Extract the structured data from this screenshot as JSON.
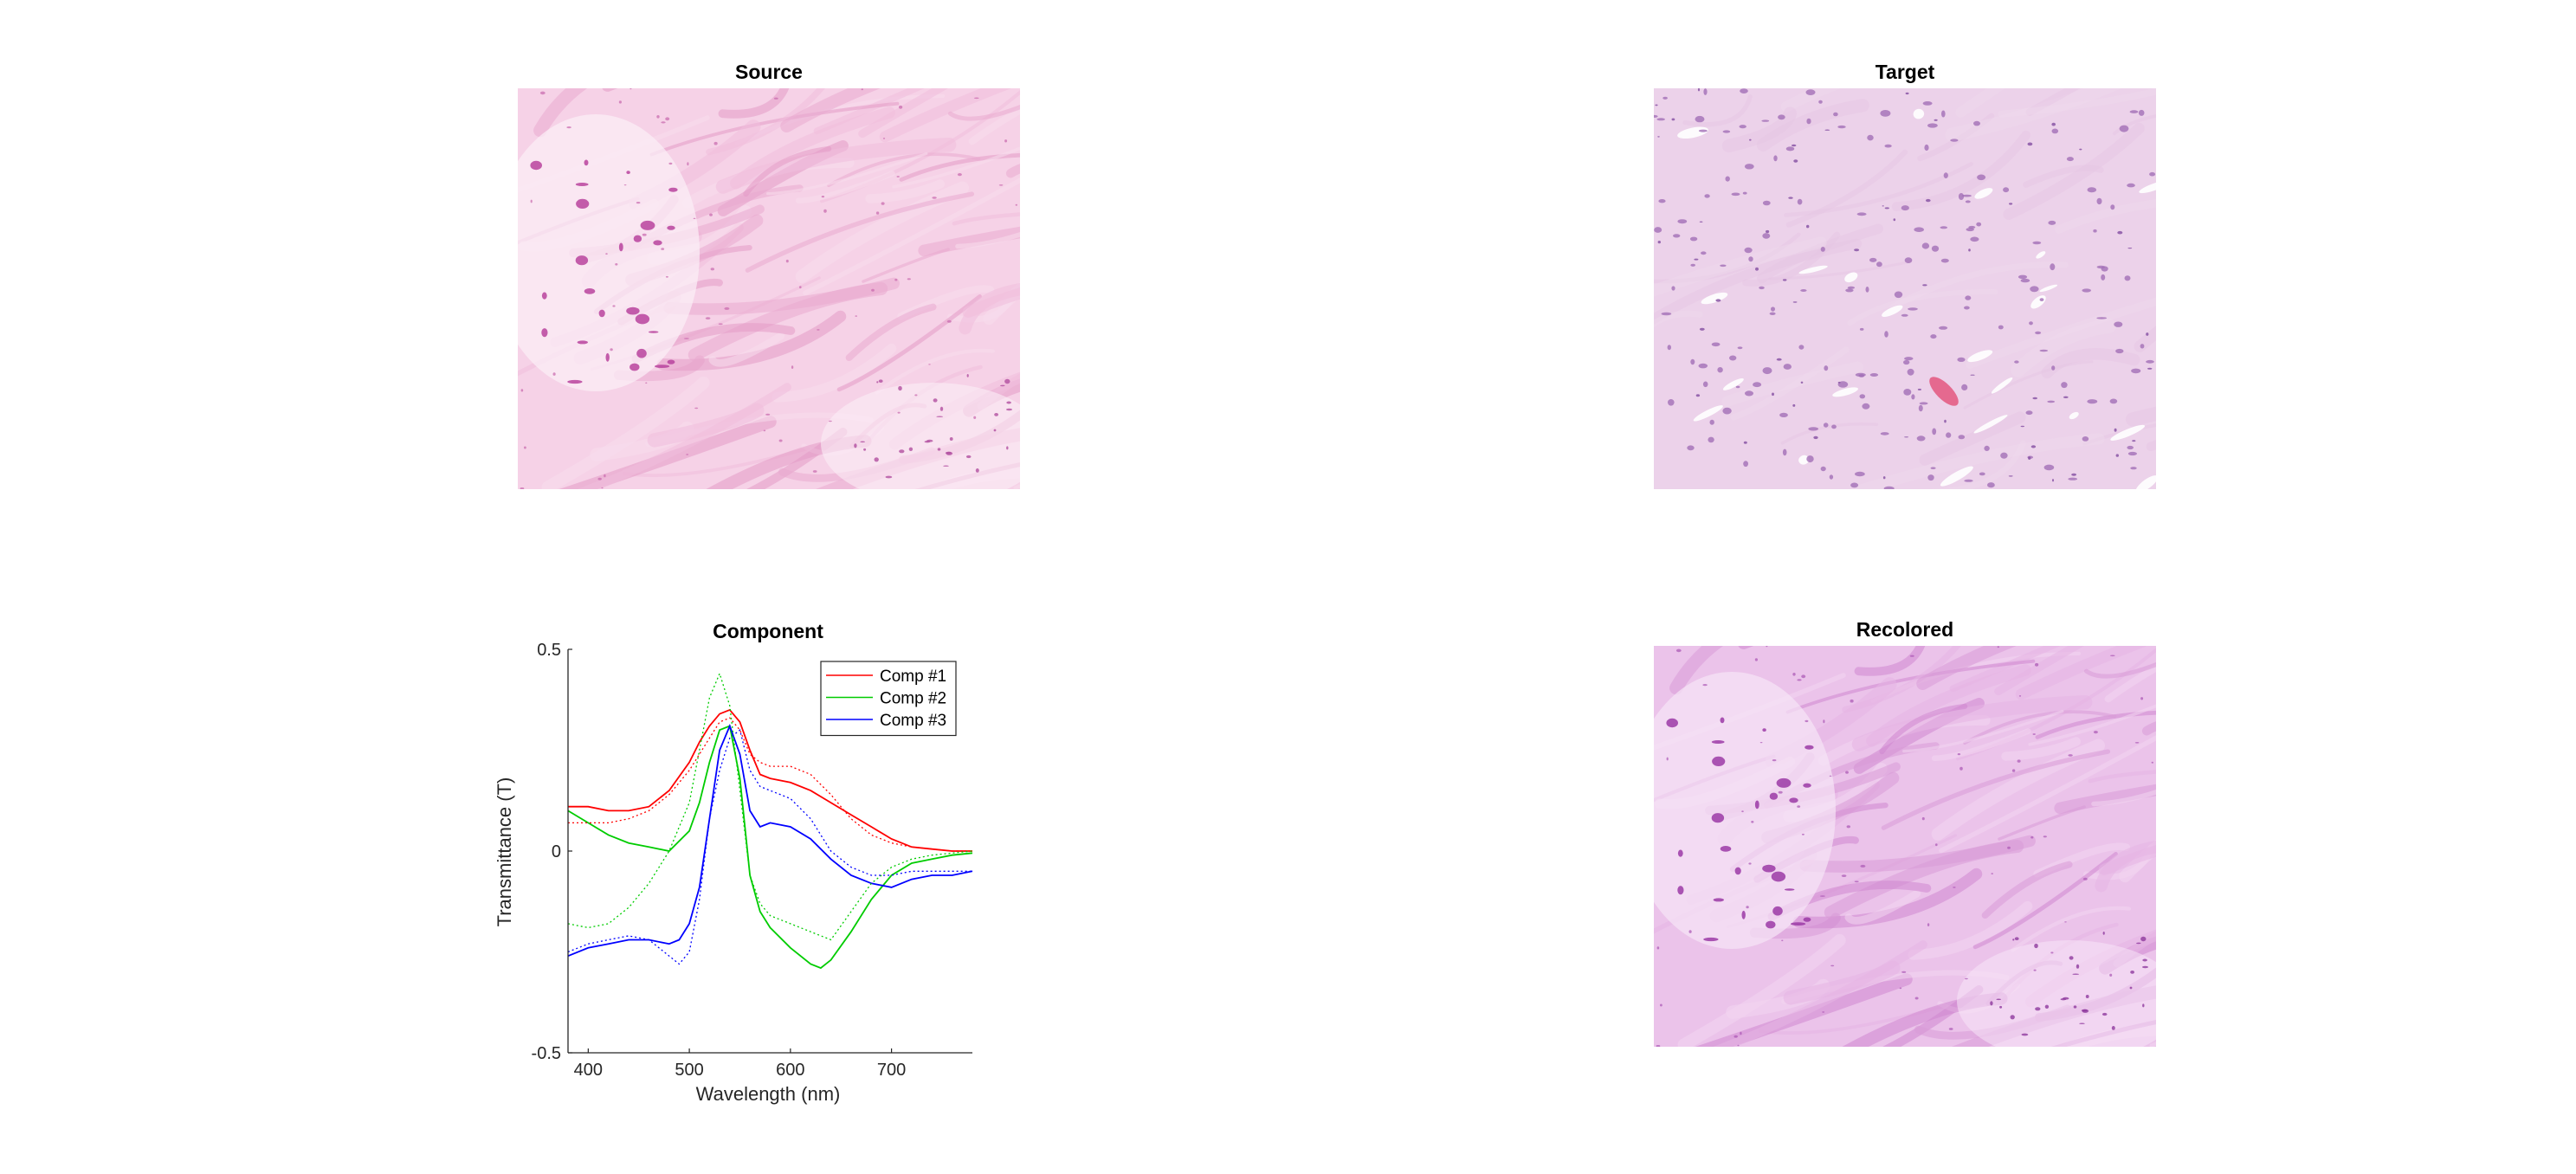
{
  "panels": {
    "source": {
      "title": "Source"
    },
    "target": {
      "title": "Target"
    },
    "component": {
      "title": "Component"
    },
    "recolored": {
      "title": "Recolored"
    }
  },
  "colors": {
    "comp1": "#ff0000",
    "comp2": "#00cc00",
    "comp3": "#0000ff",
    "source_bg": "#f3c3df",
    "source_stain": "#b8439e",
    "target_bg": "#eacce6",
    "target_nuclei": "#a36fb6",
    "recolored_bg": "#e7b6e4",
    "recolored_stain": "#9b3aa6"
  },
  "chart_data": {
    "type": "line",
    "title": "Component",
    "xlabel": "Wavelength (nm)",
    "ylabel": "Transmittance (T)",
    "xlim": [
      380,
      780
    ],
    "ylim": [
      -0.5,
      0.5
    ],
    "xticks": [
      400,
      500,
      600,
      700
    ],
    "yticks": [
      -0.5,
      0,
      0.5
    ],
    "ytick_labels": [
      "-0.5",
      "0",
      "0.5"
    ],
    "legend_position": "top-right",
    "series": [
      {
        "name": "Comp #1",
        "color": "#ff0000",
        "style": "solid",
        "x": [
          380,
          400,
          420,
          440,
          460,
          480,
          500,
          510,
          520,
          530,
          540,
          550,
          560,
          570,
          580,
          600,
          620,
          640,
          660,
          680,
          700,
          720,
          740,
          760,
          780
        ],
        "y": [
          0.11,
          0.11,
          0.1,
          0.1,
          0.11,
          0.15,
          0.22,
          0.27,
          0.31,
          0.34,
          0.35,
          0.32,
          0.25,
          0.19,
          0.18,
          0.17,
          0.15,
          0.12,
          0.09,
          0.06,
          0.03,
          0.01,
          0.005,
          0.0,
          0.0
        ]
      },
      {
        "name": "Comp #2",
        "color": "#00cc00",
        "style": "solid",
        "x": [
          380,
          400,
          420,
          440,
          460,
          480,
          500,
          510,
          520,
          530,
          540,
          550,
          560,
          570,
          580,
          600,
          620,
          630,
          640,
          660,
          680,
          700,
          720,
          740,
          760,
          780
        ],
        "y": [
          0.1,
          0.07,
          0.04,
          0.02,
          0.01,
          0.0,
          0.05,
          0.12,
          0.22,
          0.3,
          0.31,
          0.18,
          -0.06,
          -0.15,
          -0.19,
          -0.24,
          -0.28,
          -0.29,
          -0.27,
          -0.2,
          -0.12,
          -0.06,
          -0.03,
          -0.02,
          -0.01,
          -0.005
        ]
      },
      {
        "name": "Comp #3",
        "color": "#0000ff",
        "style": "solid",
        "x": [
          380,
          400,
          420,
          440,
          460,
          480,
          490,
          500,
          510,
          520,
          530,
          540,
          550,
          560,
          570,
          580,
          600,
          620,
          640,
          660,
          680,
          700,
          720,
          740,
          760,
          780
        ],
        "y": [
          -0.26,
          -0.24,
          -0.23,
          -0.22,
          -0.22,
          -0.23,
          -0.22,
          -0.18,
          -0.09,
          0.08,
          0.25,
          0.31,
          0.24,
          0.1,
          0.06,
          0.07,
          0.06,
          0.03,
          -0.02,
          -0.06,
          -0.08,
          -0.09,
          -0.07,
          -0.06,
          -0.06,
          -0.05
        ]
      },
      {
        "name": "",
        "color": "#ff0000",
        "style": "dotted",
        "x": [
          380,
          400,
          420,
          440,
          460,
          480,
          500,
          520,
          530,
          540,
          550,
          560,
          570,
          580,
          600,
          620,
          640,
          660,
          680,
          700,
          720,
          740,
          760,
          780
        ],
        "y": [
          0.07,
          0.07,
          0.07,
          0.08,
          0.1,
          0.14,
          0.2,
          0.28,
          0.32,
          0.33,
          0.3,
          0.24,
          0.22,
          0.21,
          0.21,
          0.19,
          0.14,
          0.08,
          0.04,
          0.02,
          0.01,
          0.005,
          0.0,
          0.0
        ]
      },
      {
        "name": "",
        "color": "#00cc00",
        "style": "dotted",
        "x": [
          380,
          400,
          420,
          440,
          460,
          480,
          500,
          510,
          520,
          530,
          540,
          550,
          560,
          570,
          580,
          600,
          620,
          640,
          660,
          680,
          700,
          720,
          740,
          760,
          780
        ],
        "y": [
          -0.18,
          -0.19,
          -0.18,
          -0.14,
          -0.08,
          0.0,
          0.12,
          0.25,
          0.38,
          0.44,
          0.36,
          0.15,
          -0.06,
          -0.13,
          -0.16,
          -0.18,
          -0.2,
          -0.22,
          -0.15,
          -0.08,
          -0.04,
          -0.02,
          -0.01,
          -0.005,
          0.0
        ]
      },
      {
        "name": "",
        "color": "#0000ff",
        "style": "dotted",
        "x": [
          380,
          400,
          420,
          440,
          460,
          480,
          490,
          500,
          510,
          520,
          530,
          540,
          550,
          560,
          570,
          580,
          600,
          620,
          640,
          660,
          680,
          700,
          720,
          740,
          760,
          780
        ],
        "y": [
          -0.25,
          -0.23,
          -0.22,
          -0.21,
          -0.22,
          -0.26,
          -0.28,
          -0.25,
          -0.12,
          0.08,
          0.2,
          0.28,
          0.3,
          0.2,
          0.16,
          0.15,
          0.13,
          0.08,
          0.0,
          -0.04,
          -0.06,
          -0.06,
          -0.05,
          -0.05,
          -0.05,
          -0.05
        ]
      }
    ]
  }
}
